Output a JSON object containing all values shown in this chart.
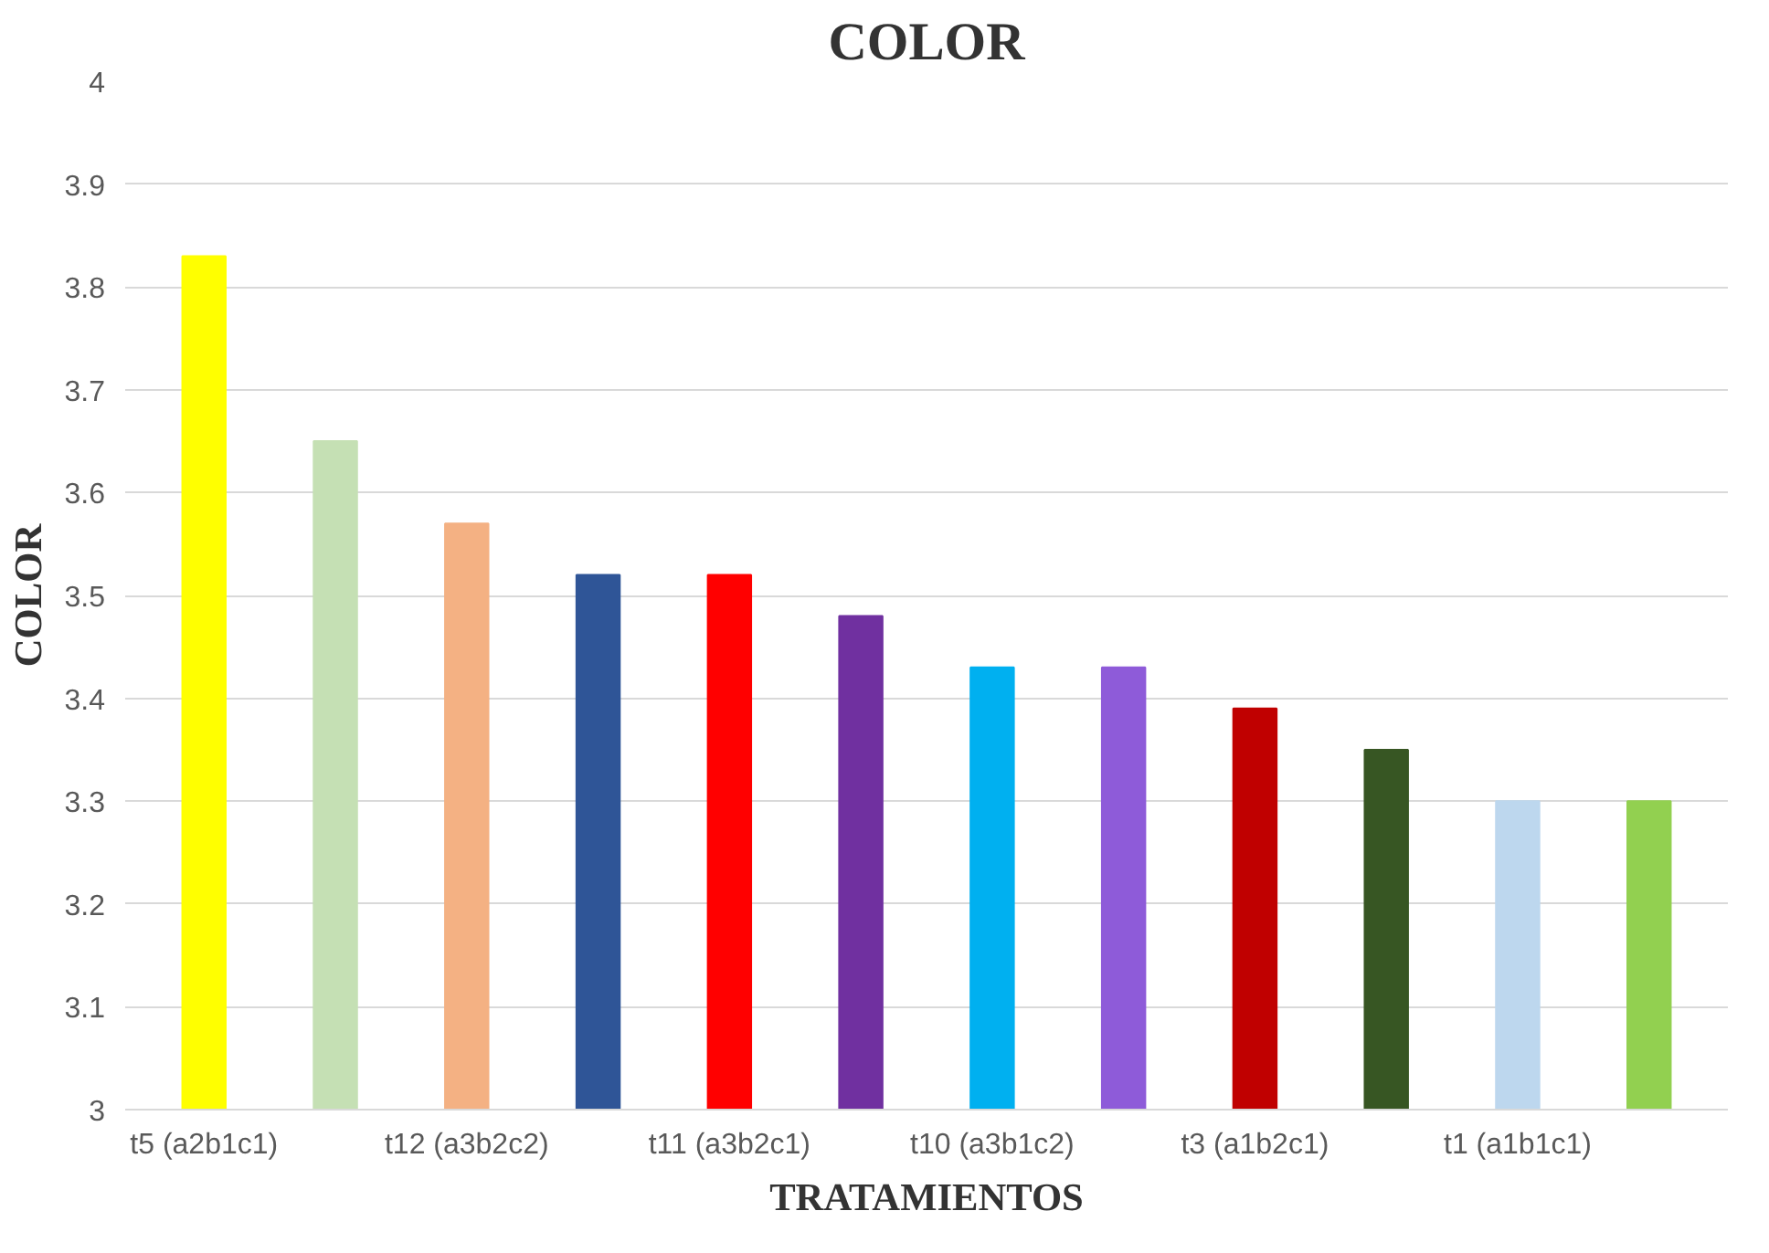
{
  "chart_data": {
    "type": "bar",
    "title": "COLOR",
    "xlabel": "TRATAMIENTOS",
    "ylabel": "COLOR",
    "categories": [
      "t5 (a2b1c1)",
      null,
      "t12 (a3b2c2)",
      null,
      "t11 (a3b2c1)",
      null,
      "t10 (a3b1c2)",
      null,
      "t3 (a1b2c1)",
      null,
      "t1 (a1b1c1)",
      null
    ],
    "values": [
      3.83,
      3.65,
      3.57,
      3.52,
      3.52,
      3.48,
      3.43,
      3.43,
      3.39,
      3.35,
      3.3,
      3.3
    ],
    "colors": [
      "#ffff00",
      "#c5e0b4",
      "#f4b183",
      "#2f5597",
      "#ff0000",
      "#7030a0",
      "#00b0f0",
      "#8e5bd9",
      "#c00000",
      "#375623",
      "#bdd7ee",
      "#92d050"
    ],
    "ylim": [
      3,
      4
    ],
    "yticks": [
      3,
      3.1,
      3.2,
      3.3,
      3.4,
      3.5,
      3.6,
      3.7,
      3.8,
      3.9,
      4
    ],
    "grid": "y"
  }
}
